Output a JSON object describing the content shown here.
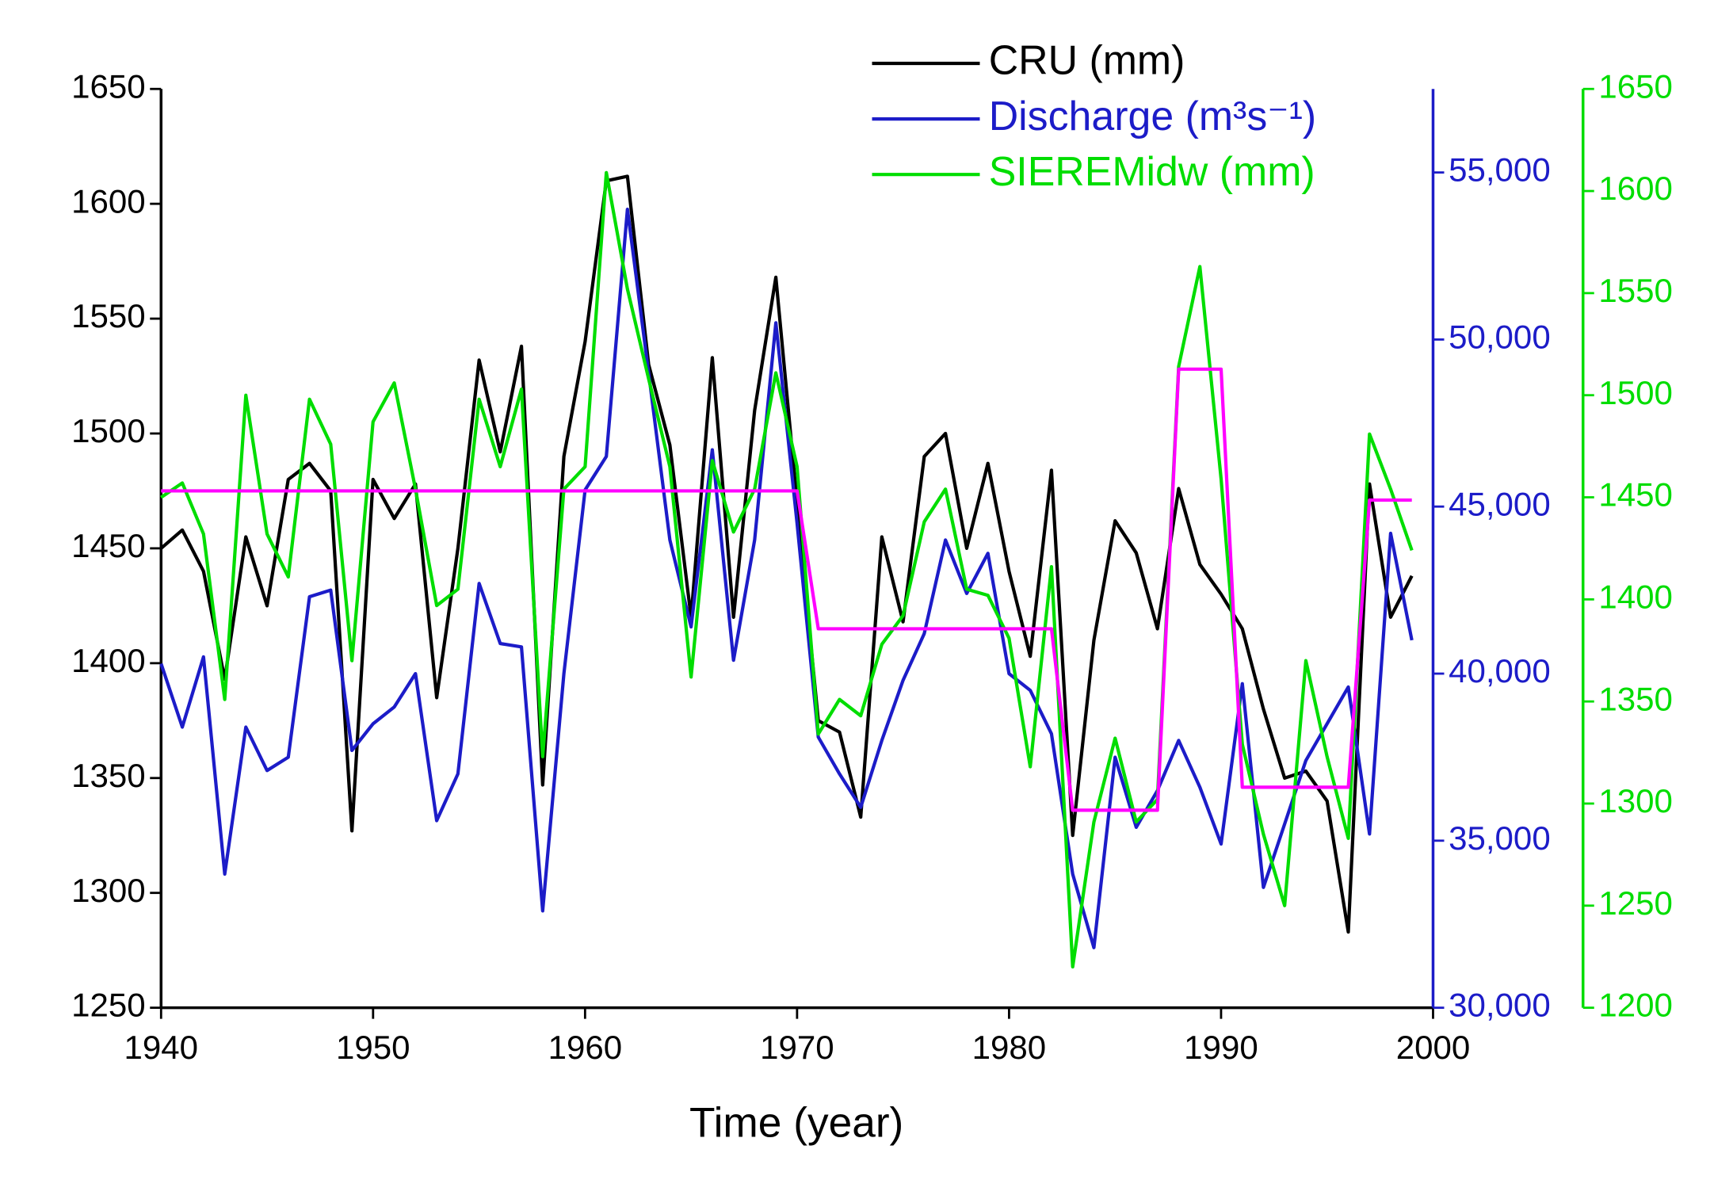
{
  "chart_data": {
    "type": "line",
    "xlabel": "Time (year)",
    "x": [
      1940,
      1941,
      1942,
      1943,
      1944,
      1945,
      1946,
      1947,
      1948,
      1949,
      1950,
      1951,
      1952,
      1953,
      1954,
      1955,
      1956,
      1957,
      1958,
      1959,
      1960,
      1961,
      1962,
      1963,
      1964,
      1965,
      1966,
      1967,
      1968,
      1969,
      1970,
      1971,
      1972,
      1973,
      1974,
      1975,
      1976,
      1977,
      1978,
      1979,
      1980,
      1981,
      1982,
      1983,
      1984,
      1985,
      1986,
      1987,
      1988,
      1989,
      1990,
      1991,
      1992,
      1993,
      1994,
      1995,
      1996,
      1997,
      1998,
      1999
    ],
    "xlim": [
      1940,
      2000
    ],
    "xticks": [
      1940,
      1950,
      1960,
      1970,
      1980,
      1990,
      2000
    ],
    "ylim": [
      1250,
      1650
    ],
    "yticks": [
      1250,
      1300,
      1350,
      1400,
      1450,
      1500,
      1550,
      1600,
      1650
    ],
    "y2lim": [
      30000,
      57500
    ],
    "y2ticks": [
      {
        "value": 30000,
        "label": "30,000"
      },
      {
        "value": 35000,
        "label": "35,000"
      },
      {
        "value": 40000,
        "label": "40,000"
      },
      {
        "value": 45000,
        "label": "45,000"
      },
      {
        "value": 50000,
        "label": "50,000"
      },
      {
        "value": 55000,
        "label": "55,000"
      }
    ],
    "y3lim": [
      1200,
      1650
    ],
    "y3ticks": [
      1200,
      1250,
      1300,
      1350,
      1400,
      1450,
      1500,
      1550,
      1600,
      1650
    ],
    "y2color": "#1c1cc8",
    "y3color": "#00dd00",
    "series": [
      {
        "name": "CRU (mm)",
        "color": "#000000",
        "axis": "y",
        "values": [
          1450,
          1458,
          1440,
          1393,
          1455,
          1425,
          1480,
          1487,
          1475,
          1327,
          1480,
          1463,
          1478,
          1385,
          1450,
          1532,
          1492,
          1538,
          1347,
          1490,
          1540,
          1610,
          1612,
          1530,
          1495,
          1420,
          1533,
          1420,
          1510,
          1568,
          1470,
          1375,
          1370,
          1333,
          1455,
          1418,
          1490,
          1500,
          1450,
          1487,
          1440,
          1403,
          1484,
          1325,
          1410,
          1462,
          1448,
          1415,
          1476,
          1443,
          1430,
          1415,
          1380,
          1350,
          1353,
          1340,
          1283,
          1478,
          1420,
          1438
        ]
      },
      {
        "name": "Discharge (m³s⁻¹)",
        "color": "#1c1cc8",
        "axis": "y2",
        "values": [
          40300,
          38400,
          40500,
          34000,
          38400,
          37100,
          37500,
          42300,
          42500,
          37700,
          38500,
          39000,
          40000,
          35600,
          37000,
          42700,
          40900,
          40800,
          32900,
          40000,
          45500,
          46500,
          53900,
          49000,
          44000,
          41400,
          46700,
          40400,
          44000,
          50500,
          44500,
          38100,
          37000,
          36000,
          38000,
          39800,
          41200,
          44000,
          42400,
          43600,
          40000,
          39500,
          38200,
          34000,
          31800,
          37500,
          35400,
          36500,
          38000,
          36600,
          34900,
          39700,
          33600,
          35500,
          37400,
          38500,
          39600,
          35200,
          44200,
          41000
        ]
      },
      {
        "name": "SIEREMidw (mm)",
        "color": "#00dd00",
        "axis": "y3",
        "values": [
          1450,
          1457,
          1432,
          1351,
          1500,
          1432,
          1411,
          1498,
          1476,
          1370,
          1487,
          1506,
          1454,
          1397,
          1405,
          1498,
          1465,
          1503,
          1323,
          1454,
          1465,
          1609,
          1552,
          1508,
          1465,
          1362,
          1468,
          1433,
          1454,
          1511,
          1465,
          1334,
          1351,
          1343,
          1378,
          1392,
          1438,
          1454,
          1405,
          1402,
          1381,
          1318,
          1416,
          1220,
          1291,
          1332,
          1291,
          1302,
          1514,
          1563,
          1459,
          1329,
          1285,
          1250,
          1370,
          1323,
          1283,
          1481,
          1454,
          1424
        ]
      },
      {
        "color": "#ff00ff",
        "axis": "y",
        "x": [
          1940,
          1970,
          1971,
          1982,
          1983,
          1987,
          1988,
          1990,
          1991,
          1996,
          1997,
          1999
        ],
        "values": [
          1475,
          1475,
          1415,
          1415,
          1336,
          1336,
          1528,
          1528,
          1346,
          1346,
          1471,
          1471
        ]
      }
    ]
  }
}
